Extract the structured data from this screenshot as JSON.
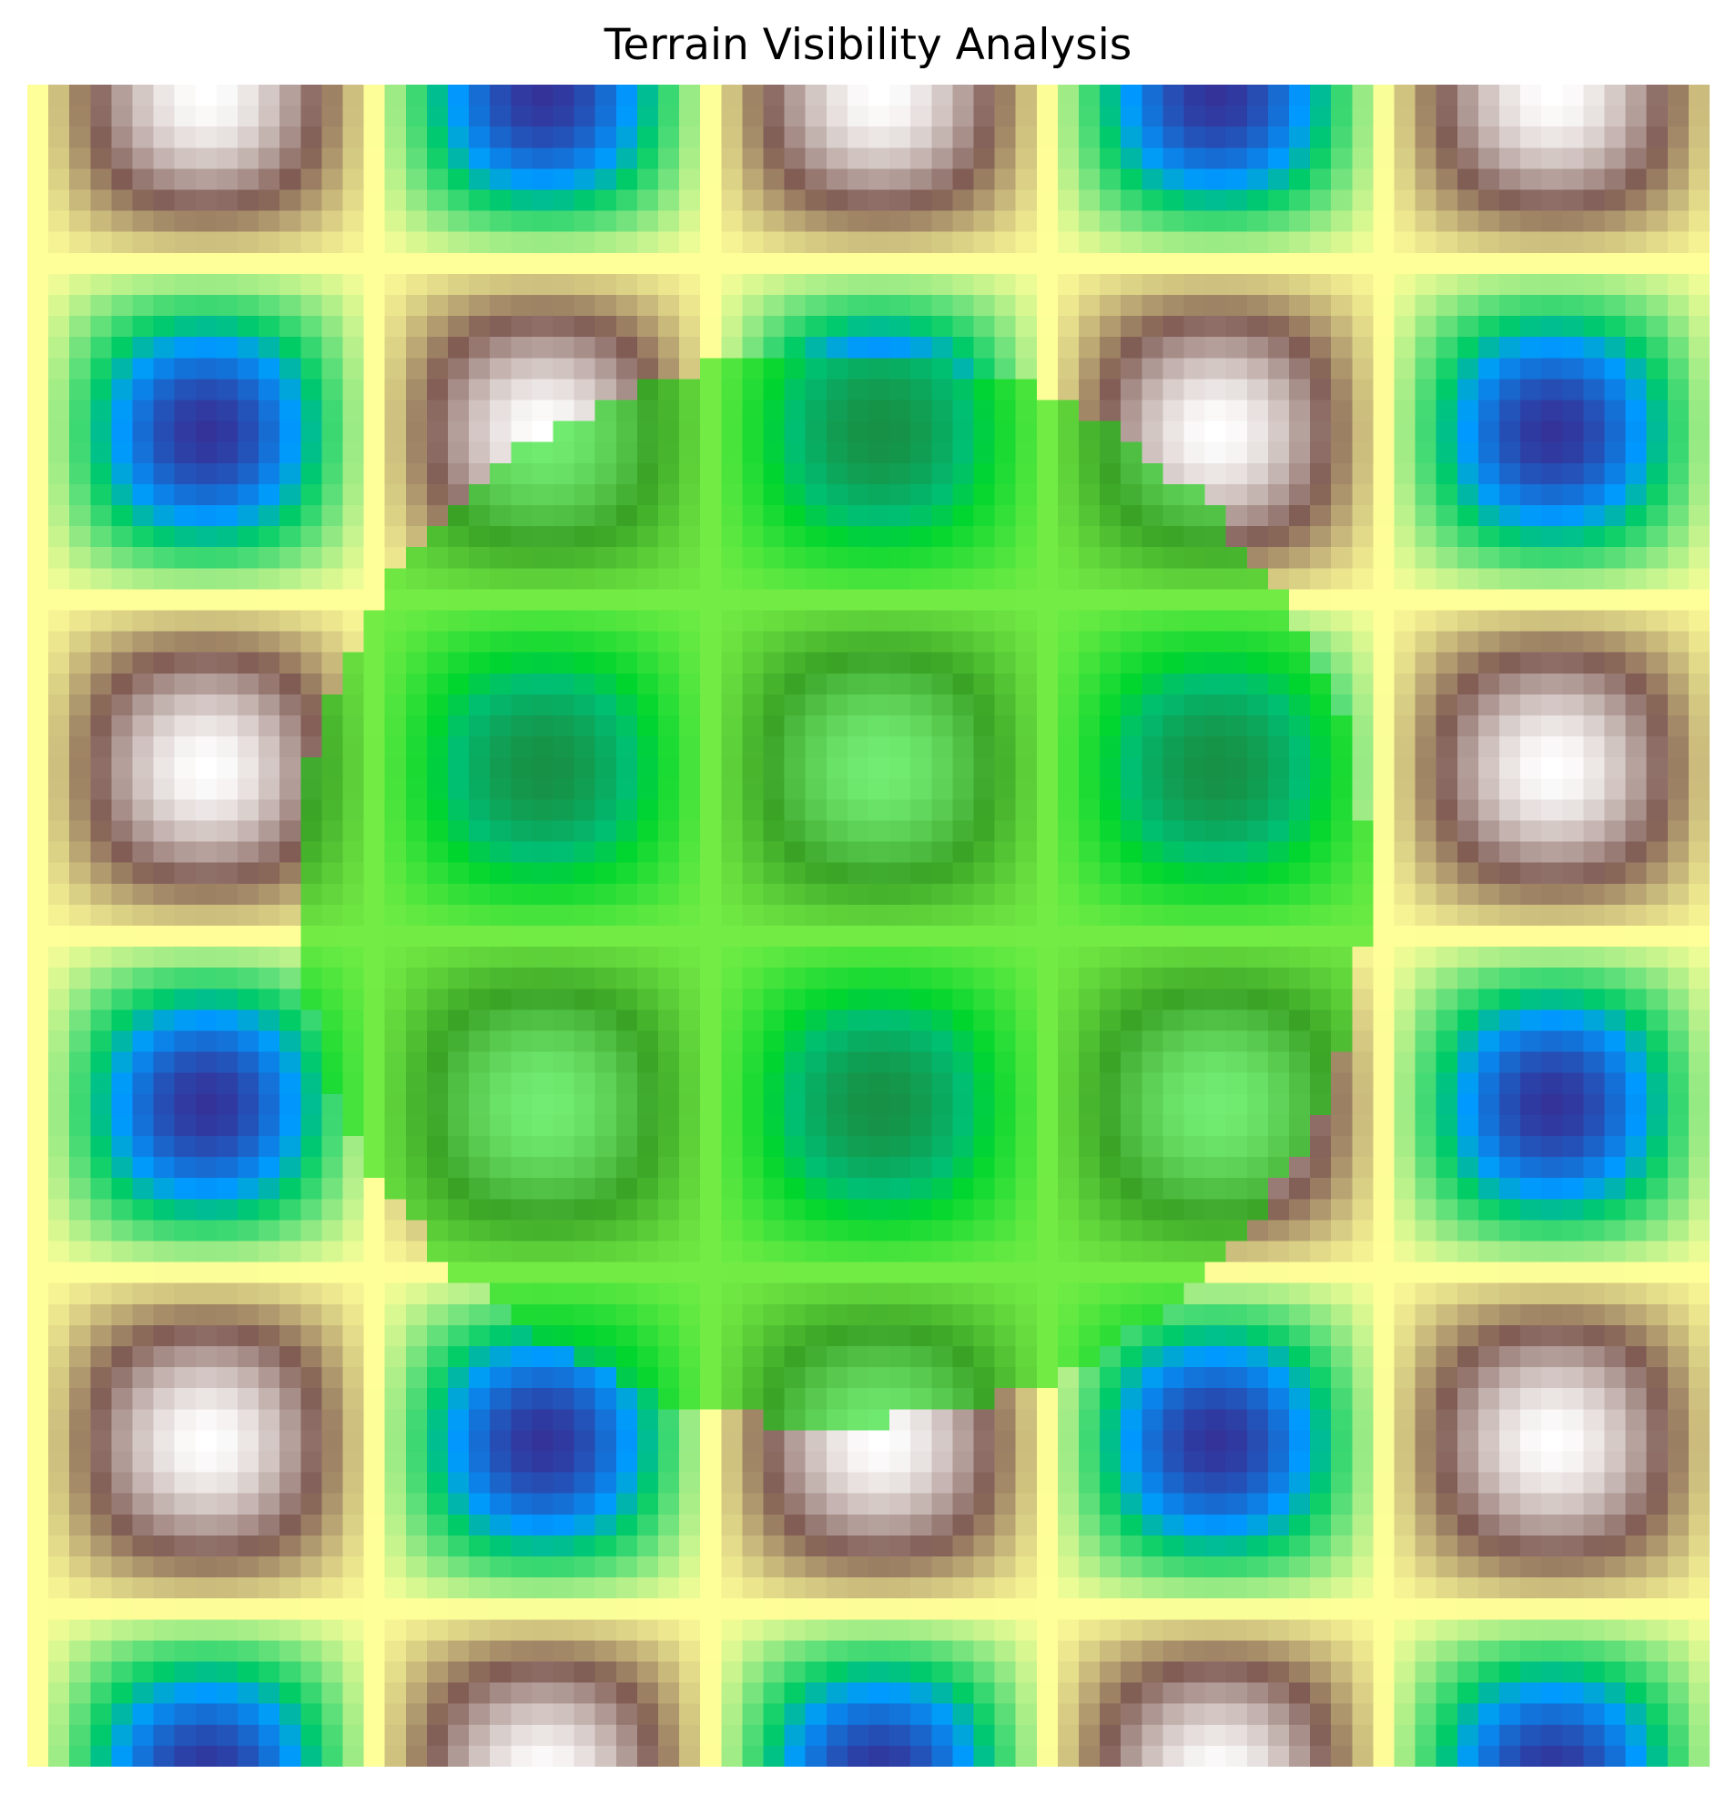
{
  "chart_data": {
    "type": "heatmap",
    "title": "Terrain Visibility Analysis",
    "xlabel": "",
    "ylabel": "",
    "axes_visible": false,
    "grid": false,
    "legend": "none",
    "grid_size": [
      80,
      80
    ],
    "elevation_field": {
      "formula": "sin(x) * cos(y)",
      "x_range": [
        0,
        15.5
      ],
      "y_range": [
        0,
        15.5
      ],
      "value_range": [
        -1,
        1
      ]
    },
    "colormap": {
      "name": "terrain",
      "stops": [
        {
          "value": 0.0,
          "color": "#333399"
        },
        {
          "value": 0.15,
          "color": "#0099ff"
        },
        {
          "value": 0.25,
          "color": "#00cc66"
        },
        {
          "value": 0.5,
          "color": "#ffff99"
        },
        {
          "value": 0.75,
          "color": "#805c54"
        },
        {
          "value": 1.0,
          "color": "#ffffff"
        }
      ]
    },
    "visibility_overlay": {
      "shape": "circle",
      "center": [
        7.4,
        7.4
      ],
      "radius": 5.0,
      "color": "#00dd00",
      "alpha": 0.55
    }
  }
}
